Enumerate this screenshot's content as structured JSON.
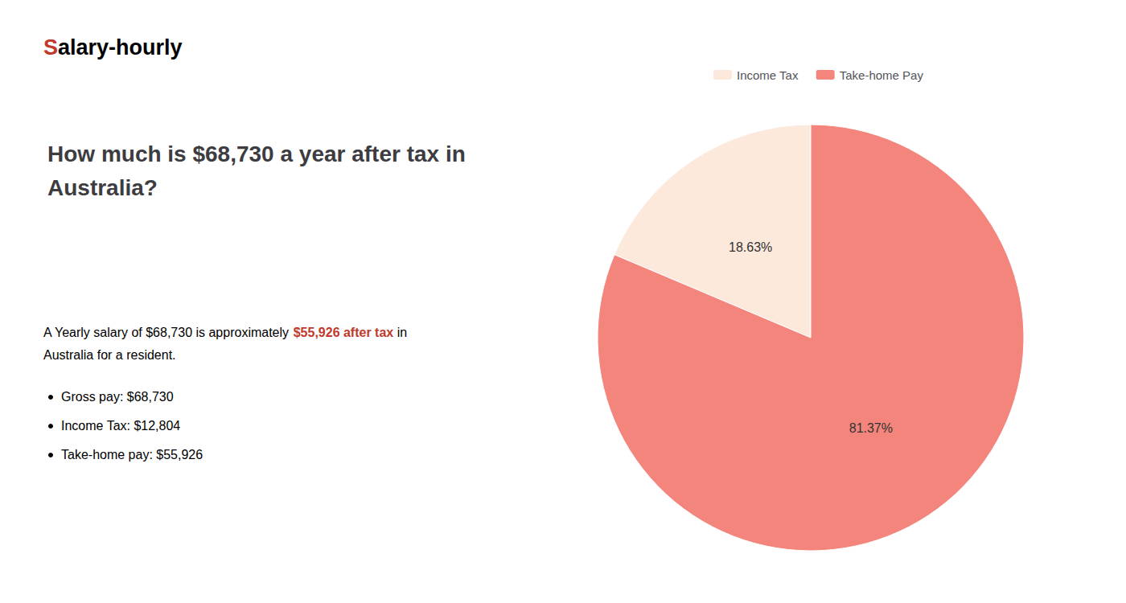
{
  "chart_data": {
    "type": "pie",
    "title": "How much is $68,730 a year after tax in\nAustralia?",
    "categories": [
      "Income Tax",
      "Take-home Pay"
    ],
    "values": [
      18.63,
      81.37
    ],
    "value_labels": [
      "18.63%",
      "81.37%"
    ],
    "colors": [
      "#fde8dc",
      "#f4857c"
    ],
    "data_labels": true,
    "legend": "top",
    "annotations": [
      {
        "text": "S",
        "color": "#c0392b"
      },
      {
        "text": "alary-hourly"
      },
      {
        "text": "A Yearly salary of $68,730 is approximately "
      },
      {
        "text": "$55,926 after tax",
        "color": "#c0392b"
      },
      {
        "text": " in"
      },
      {
        "text": "Australia for a resident."
      },
      {
        "text": "Gross pay: $68,730"
      },
      {
        "text": "Income Tax: $12,804"
      },
      {
        "text": "Take-home pay: $55,926"
      }
    ]
  }
}
